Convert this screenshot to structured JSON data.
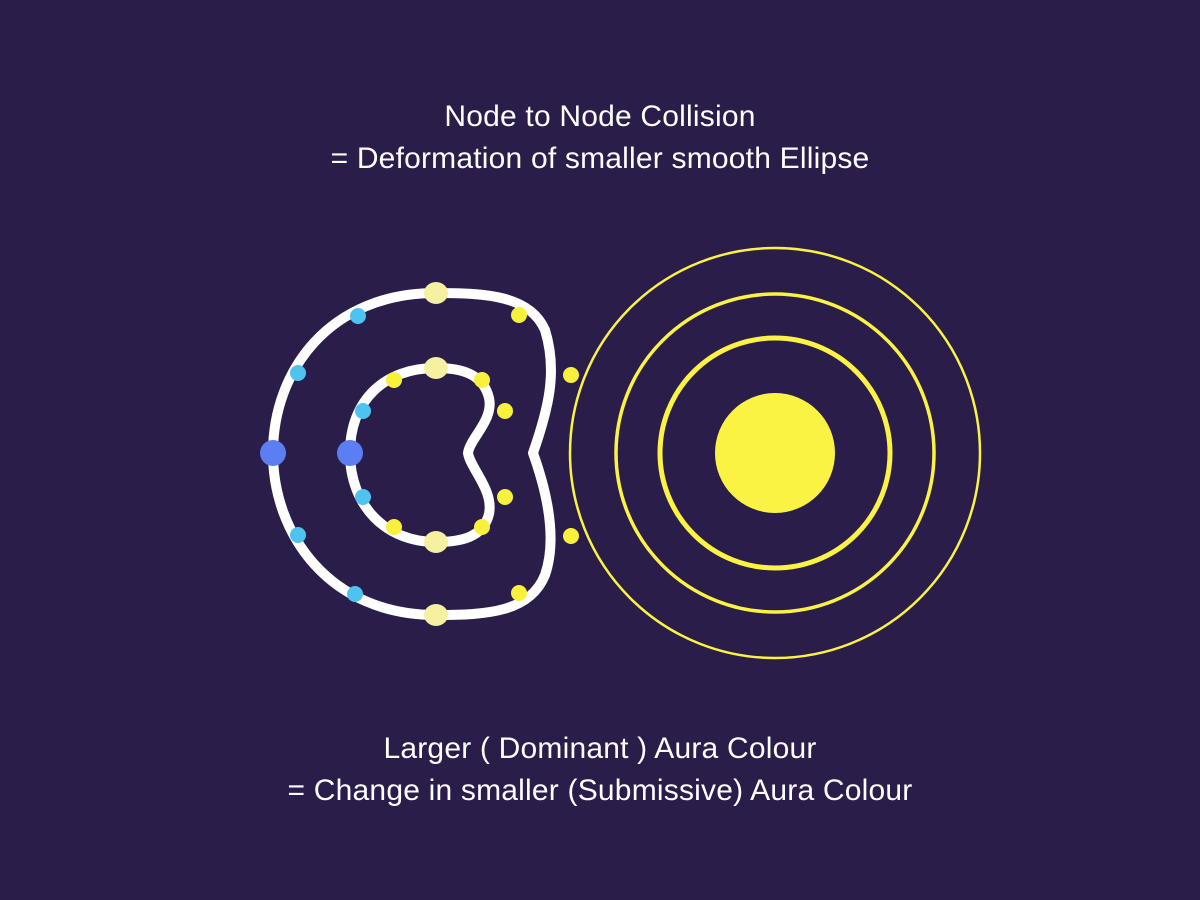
{
  "top_caption": {
    "line1": "Node to Node Collision",
    "line2": "= Deformation of smaller smooth Ellipse"
  },
  "bottom_caption": {
    "line1": "Larger ( Dominant ) Aura Colour",
    "line2": "= Change in smaller (Submissive) Aura Colour"
  },
  "colors": {
    "background": "#2b1d4a",
    "text": "#ffffff",
    "smaller_aura_outline": "#ffffff",
    "dominant_aura": "#fbf344",
    "node_pale_yellow": "#f6f1a0",
    "node_yellow": "#f8f13c",
    "node_cyan": "#4ec3f0",
    "node_blue": "#5b7ef2"
  }
}
